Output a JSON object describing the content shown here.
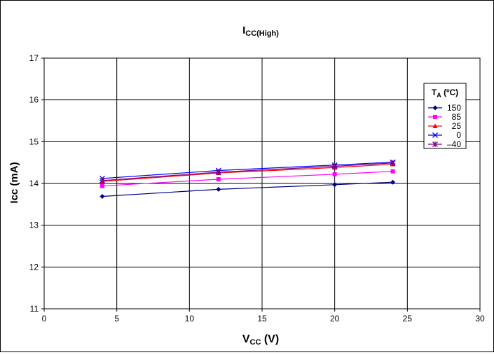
{
  "chart_data": {
    "type": "line",
    "title": "I",
    "title_sub": "CC(High)",
    "xlabel": "V",
    "xlabel_sub": "CC",
    "xlabel_tail": " (V)",
    "ylabel": "Icc (mA)",
    "xlim": [
      0,
      30
    ],
    "ylim": [
      11,
      17
    ],
    "xticks": [
      "0",
      "5",
      "10",
      "15",
      "20",
      "25",
      "30"
    ],
    "yticks": [
      "11",
      "12",
      "13",
      "14",
      "15",
      "16",
      "17"
    ],
    "grid": true,
    "legend": {
      "title": "T",
      "title_sub": "A",
      "title_tail": " (ºC)",
      "placement": "top-right"
    },
    "x": [
      4,
      12,
      20,
      24
    ],
    "series": [
      {
        "name": "150",
        "values": [
          13.69,
          13.86,
          13.97,
          14.03
        ],
        "color": "#000080",
        "marker": "diamond"
      },
      {
        "name": "85",
        "values": [
          13.94,
          14.1,
          14.22,
          14.29
        ],
        "color": "#ff00ff",
        "marker": "square"
      },
      {
        "name": "25",
        "values": [
          14.05,
          14.25,
          14.38,
          14.46
        ],
        "color": "#ff0000",
        "marker": "triangle"
      },
      {
        "name": "0",
        "values": [
          14.12,
          14.31,
          14.44,
          14.51
        ],
        "color": "#0000ff",
        "marker": "x"
      },
      {
        "name": "–40",
        "values": [
          14.07,
          14.27,
          14.41,
          14.49
        ],
        "color": "#800080",
        "marker": "star"
      }
    ]
  }
}
